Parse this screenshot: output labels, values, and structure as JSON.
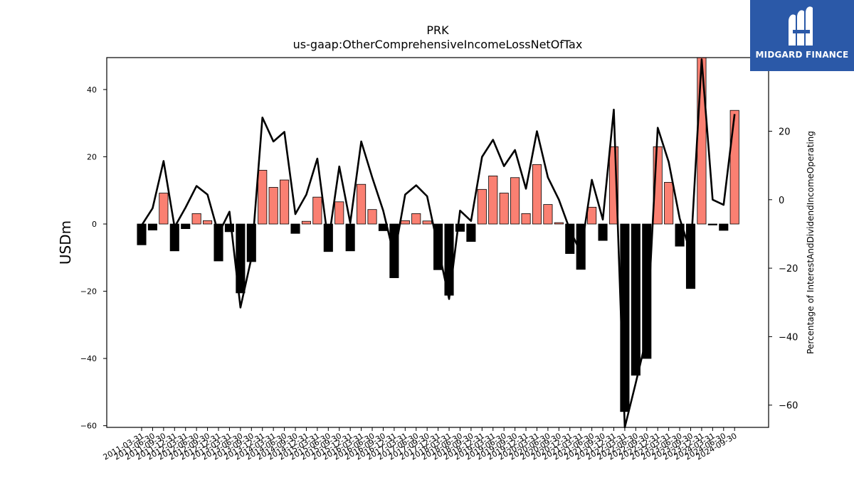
{
  "logo": {
    "text": "MIDGARD FINANCE"
  },
  "colors": {
    "positive_bar": "#fa8072",
    "negative_bar": "#000000",
    "line": "#000000",
    "logo_bg": "#2b59a8"
  },
  "chart_data": {
    "type": "bar",
    "title": "PRK",
    "subtitle": "us-gaap:OtherComprehensiveIncomeLossNetOfTax",
    "ylabel": "USDm",
    "y2label": "Percentage of InterestAndDividendIncomeOperating",
    "ylim": [
      -60.5,
      49.5
    ],
    "y2lim": [
      -66.5,
      41.5
    ],
    "yticks": [
      -60,
      -40,
      -20,
      0,
      20,
      40
    ],
    "y2ticks": [
      -60,
      -40,
      -20,
      0,
      20
    ],
    "xtick_labels": [
      "2011-03-31",
      "2011-06-30",
      "2011-09-30",
      "2011-12-31",
      "2012-03-31",
      "2012-06-30",
      "2012-09-30",
      "2012-12-31",
      "2013-03-31",
      "2013-06-30",
      "2013-09-30",
      "2013-12-31",
      "2014-03-31",
      "2014-06-30",
      "2014-09-30",
      "2014-12-31",
      "2015-03-31",
      "2015-06-30",
      "2015-09-30",
      "2015-12-31",
      "2016-03-31",
      "2016-06-30",
      "2016-09-30",
      "2016-12-31",
      "2017-03-31",
      "2017-06-30",
      "2017-09-30",
      "2017-12-31",
      "2018-03-31",
      "2018-06-30",
      "2018-09-30",
      "2018-12-31",
      "2019-03-31",
      "2019-06-30",
      "2019-09-30",
      "2019-12-31",
      "2020-03-31",
      "2020-06-30",
      "2020-09-30",
      "2020-12-31",
      "2021-03-31",
      "2021-06-30",
      "2021-09-30",
      "2021-12-31",
      "2022-03-31",
      "2022-06-30",
      "2022-09-30",
      "2022-12-31",
      "2023-03-31",
      "2023-06-30",
      "2023-09-30",
      "2023-12-31",
      "2024-03-31",
      "2024-06-30",
      "2024-09-30"
    ],
    "series": [
      {
        "kind": "bar",
        "values": [
          -6.2,
          -1.8,
          9.2,
          -8.0,
          -1.4,
          3.1,
          1.0,
          -11.0,
          -2.3,
          -20.5,
          -11.2,
          16.0,
          10.9,
          13.1,
          -2.8,
          0.8,
          8.0,
          -8.2,
          6.6,
          -8.0,
          11.8,
          4.3,
          -2.0,
          -16.0,
          1.0,
          3.1,
          0.9,
          -13.6,
          -21.2,
          -2.2,
          -5.2,
          10.3,
          14.3,
          9.2,
          13.8,
          3.1,
          17.7,
          5.8,
          0.4,
          -8.8,
          -13.5,
          5.0,
          -4.9,
          23.0,
          -55.8,
          -45.0,
          -40.0,
          23.0,
          12.4,
          -6.6,
          -19.2,
          49.5,
          -0.3,
          -1.9,
          33.8
        ]
      },
      {
        "kind": "line",
        "axis": "right",
        "values": [
          -7.5,
          -2.5,
          11.3,
          -8.0,
          -2.3,
          4.0,
          1.5,
          -10.0,
          -3.5,
          -31.5,
          -17.0,
          24.0,
          17.0,
          19.8,
          -4.2,
          1.5,
          12.0,
          -12.5,
          9.7,
          -6.8,
          17.0,
          6.5,
          -3.2,
          -16.5,
          1.5,
          4.2,
          1.0,
          -14.0,
          -29.0,
          -3.2,
          -6.2,
          12.5,
          17.5,
          9.8,
          14.5,
          3.2,
          20.0,
          6.5,
          0.0,
          -8.8,
          -15.5,
          5.8,
          -5.8,
          26.3,
          -66.5,
          -53.5,
          -40.0,
          21.0,
          11.0,
          -5.5,
          -15.5,
          41.0,
          0.0,
          -1.5,
          25.0
        ]
      }
    ]
  }
}
